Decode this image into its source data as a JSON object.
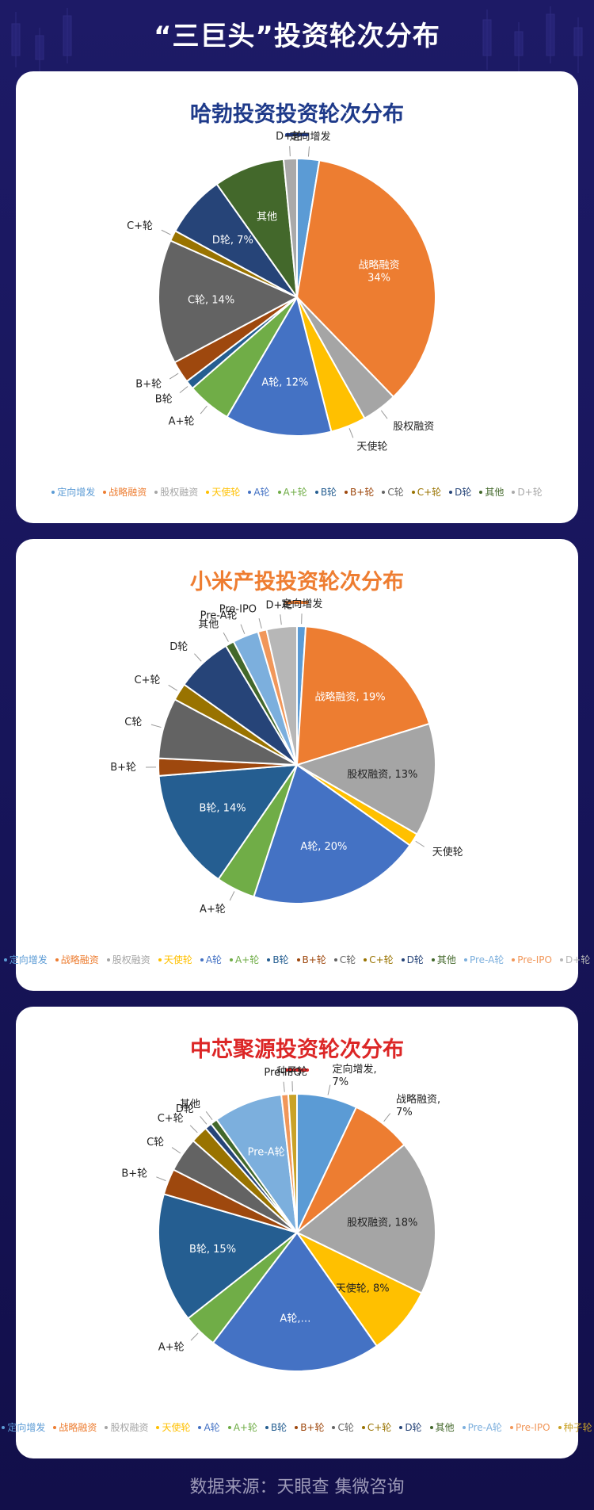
{
  "header": {
    "title": "“三巨头”投资轮次分布"
  },
  "footer": {
    "source": "数据来源：天眼查  集微咨询"
  },
  "colors": {
    "header_bg": "#1d1a66",
    "title_blue": "#1e3a8a",
    "title_orange": "#ee7d31",
    "title_red": "#dc2626"
  },
  "chart_data": [
    {
      "type": "pie",
      "title": "哈勃投资投资轮次分布",
      "title_color": "#1e3a8a",
      "slices": [
        {
          "name": "定向增发",
          "value": 2.5,
          "color": "#5b9bd5",
          "label": "定向增发"
        },
        {
          "name": "战略融资",
          "value": 34,
          "color": "#ed7d31",
          "label": "战略融资\n34%"
        },
        {
          "name": "股权融资",
          "value": 4,
          "color": "#a5a5a5",
          "label": "股权融资"
        },
        {
          "name": "天使轮",
          "value": 4,
          "color": "#ffc000",
          "label": "天使轮"
        },
        {
          "name": "A轮",
          "value": 12,
          "color": "#4472c4",
          "label": "A轮, 12%"
        },
        {
          "name": "A+轮",
          "value": 5,
          "color": "#70ad47",
          "label": "A+轮"
        },
        {
          "name": "B轮",
          "value": 1,
          "color": "#255e91",
          "label": "B轮"
        },
        {
          "name": "B+轮",
          "value": 2.5,
          "color": "#9e480e",
          "label": "B+轮"
        },
        {
          "name": "C轮",
          "value": 14,
          "color": "#636363",
          "label": "C轮, 14%"
        },
        {
          "name": "C+轮",
          "value": 1.2,
          "color": "#997300",
          "label": "C+轮"
        },
        {
          "name": "D轮",
          "value": 7,
          "color": "#264478",
          "label": "D轮, 7%"
        },
        {
          "name": "其他",
          "value": 8,
          "color": "#43682b",
          "label": "其他"
        },
        {
          "name": "D+轮",
          "value": 1.5,
          "color": "#a9a9a9",
          "label": "D+轮"
        }
      ],
      "legend": [
        "定向增发",
        "战略融资",
        "股权融资",
        "天使轮",
        "A轮",
        "A+轮",
        "B轮",
        "B+轮",
        "C轮",
        "C+轮",
        "D轮",
        "其他",
        "D+轮"
      ]
    },
    {
      "type": "pie",
      "title": "小米产投投资轮次分布",
      "title_color": "#ee7d31",
      "slices": [
        {
          "name": "定向增发",
          "value": 1,
          "color": "#5b9bd5",
          "label": "定向增发"
        },
        {
          "name": "战略融资",
          "value": 19,
          "color": "#ed7d31",
          "label": "战略融资, 19%"
        },
        {
          "name": "股权融资",
          "value": 13,
          "color": "#a5a5a5",
          "label": "股权融资, 13%"
        },
        {
          "name": "天使轮",
          "value": 1.5,
          "color": "#ffc000",
          "label": "天使轮"
        },
        {
          "name": "A轮",
          "value": 20,
          "color": "#4472c4",
          "label": "A轮, 20%"
        },
        {
          "name": "A+轮",
          "value": 4.5,
          "color": "#70ad47",
          "label": "A+轮"
        },
        {
          "name": "B轮",
          "value": 14,
          "color": "#255e91",
          "label": "B轮, 14%"
        },
        {
          "name": "B+轮",
          "value": 2,
          "color": "#9e480e",
          "label": "B+轮"
        },
        {
          "name": "C轮",
          "value": 7,
          "color": "#636363",
          "label": "C轮"
        },
        {
          "name": "C+轮",
          "value": 2,
          "color": "#997300",
          "label": "C+轮"
        },
        {
          "name": "D轮",
          "value": 6.5,
          "color": "#264478",
          "label": "D轮"
        },
        {
          "name": "其他",
          "value": 1,
          "color": "#43682b",
          "label": "其他"
        },
        {
          "name": "Pre-A轮",
          "value": 3,
          "color": "#7cafdd",
          "label": "Pre-A轮"
        },
        {
          "name": "Pre-IPO",
          "value": 1,
          "color": "#f1975a",
          "label": "Pre-IPO"
        },
        {
          "name": "D+轮",
          "value": 3.5,
          "color": "#b7b7b7",
          "label": "D+轮"
        }
      ],
      "legend": [
        "定向增发",
        "战略融资",
        "股权融资",
        "天使轮",
        "A轮",
        "A+轮",
        "B轮",
        "B+轮",
        "C轮",
        "C+轮",
        "D轮",
        "其他",
        "Pre-A轮",
        "Pre-IPO",
        "D+轮"
      ]
    },
    {
      "type": "pie",
      "title": "中芯聚源投资轮次分布",
      "title_color": "#dc2626",
      "slices": [
        {
          "name": "定向增发",
          "value": 7,
          "color": "#5b9bd5",
          "label": "定向增发,\n7%"
        },
        {
          "name": "战略融资",
          "value": 7,
          "color": "#ed7d31",
          "label": "战略融资,\n7%"
        },
        {
          "name": "股权融资",
          "value": 18,
          "color": "#a5a5a5",
          "label": "股权融资, 18%"
        },
        {
          "name": "天使轮",
          "value": 8,
          "color": "#ffc000",
          "label": "天使轮, 8%"
        },
        {
          "name": "A轮",
          "value": 20,
          "color": "#4472c4",
          "label": "A轮,…"
        },
        {
          "name": "A+轮",
          "value": 4,
          "color": "#70ad47",
          "label": "A+轮"
        },
        {
          "name": "B轮",
          "value": 15,
          "color": "#255e91",
          "label": "B轮, 15%"
        },
        {
          "name": "B+轮",
          "value": 3,
          "color": "#9e480e",
          "label": "B+轮"
        },
        {
          "name": "C轮",
          "value": 4,
          "color": "#636363",
          "label": "C轮"
        },
        {
          "name": "C+轮",
          "value": 2,
          "color": "#997300",
          "label": "C+轮"
        },
        {
          "name": "D轮",
          "value": 0.8,
          "color": "#264478",
          "label": "D轮"
        },
        {
          "name": "其他",
          "value": 0.8,
          "color": "#43682b",
          "label": "其他"
        },
        {
          "name": "Pre-A轮",
          "value": 8,
          "color": "#7cafdd",
          "label": "Pre-A轮"
        },
        {
          "name": "Pre-IPO",
          "value": 0.8,
          "color": "#f1975a",
          "label": "Pre-IPO"
        },
        {
          "name": "种子轮",
          "value": 1,
          "color": "#c9a227",
          "label": "种子轮"
        }
      ],
      "legend": [
        "定向增发",
        "战略融资",
        "股权融资",
        "天使轮",
        "A轮",
        "A+轮",
        "B轮",
        "B+轮",
        "C轮",
        "C+轮",
        "D轮",
        "其他",
        "Pre-A轮",
        "Pre-IPO",
        "种子轮"
      ]
    }
  ]
}
